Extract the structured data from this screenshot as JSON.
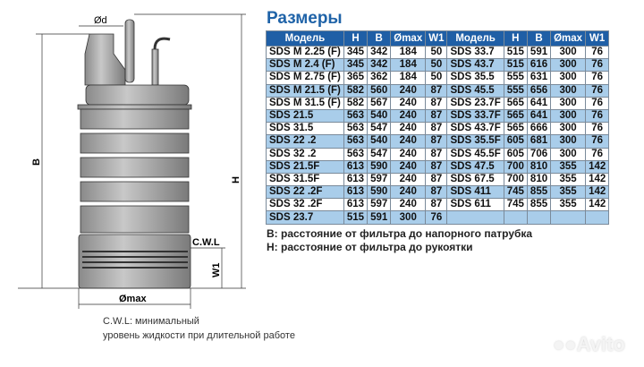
{
  "title": "Размеры",
  "diagram_labels": {
    "d": "Ød",
    "b": "B",
    "h": "H",
    "cwl": "C.W.L",
    "w1": "W1",
    "dmax": "Ømax"
  },
  "table": {
    "headers": [
      "Модель",
      "H",
      "B",
      "Ømax",
      "W1",
      "Модель",
      "H",
      "B",
      "Ømax",
      "W1"
    ],
    "rows": [
      [
        "SDS M 2.25 (F)",
        "345",
        "342",
        "184",
        "50",
        "SDS 33.7",
        "515",
        "591",
        "300",
        "76"
      ],
      [
        "SDS M 2.4 (F)",
        "345",
        "342",
        "184",
        "50",
        "SDS 43.7",
        "515",
        "616",
        "300",
        "76"
      ],
      [
        "SDS M 2.75 (F)",
        "365",
        "362",
        "184",
        "50",
        "SDS 35.5",
        "555",
        "631",
        "300",
        "76"
      ],
      [
        "SDS M 21.5 (F)",
        "582",
        "560",
        "240",
        "87",
        "SDS 45.5",
        "555",
        "656",
        "300",
        "76"
      ],
      [
        "SDS M 31.5 (F)",
        "582",
        "567",
        "240",
        "87",
        "SDS 23.7F",
        "565",
        "641",
        "300",
        "76"
      ],
      [
        "SDS 21.5",
        "563",
        "540",
        "240",
        "87",
        "SDS 33.7F",
        "565",
        "641",
        "300",
        "76"
      ],
      [
        "SDS 31.5",
        "563",
        "547",
        "240",
        "87",
        "SDS 43.7F",
        "565",
        "666",
        "300",
        "76"
      ],
      [
        "SDS 22 .2",
        "563",
        "540",
        "240",
        "87",
        "SDS 35.5F",
        "605",
        "681",
        "300",
        "76"
      ],
      [
        "SDS 32 .2",
        "563",
        "547",
        "240",
        "87",
        "SDS 45.5F",
        "605",
        "706",
        "300",
        "76"
      ],
      [
        "SDS 21.5F",
        "613",
        "590",
        "240",
        "87",
        "SDS 47.5",
        "700",
        "810",
        "355",
        "142"
      ],
      [
        "SDS 31.5F",
        "613",
        "597",
        "240",
        "87",
        "SDS 67.5",
        "700",
        "810",
        "355",
        "142"
      ],
      [
        "SDS 22 .2F",
        "613",
        "590",
        "240",
        "87",
        "SDS 411",
        "745",
        "855",
        "355",
        "142"
      ],
      [
        "SDS 32 .2F",
        "613",
        "597",
        "240",
        "87",
        "SDS 611",
        "745",
        "855",
        "355",
        "142"
      ],
      [
        "SDS 23.7",
        "515",
        "591",
        "300",
        "76",
        "",
        "",
        "",
        "",
        ""
      ]
    ]
  },
  "notes": [
    "B: расстояние от фильтра до напорного патрубка",
    "H: расстояние от фильтра до рукоятки"
  ],
  "caption": [
    "C.W.L: минимальный",
    "уровень жидкости при длительной работе"
  ],
  "watermark": "Avito",
  "colors": {
    "header": "#1f5fa6",
    "alt_row": "#a9cdea",
    "title": "#1f63a8"
  }
}
